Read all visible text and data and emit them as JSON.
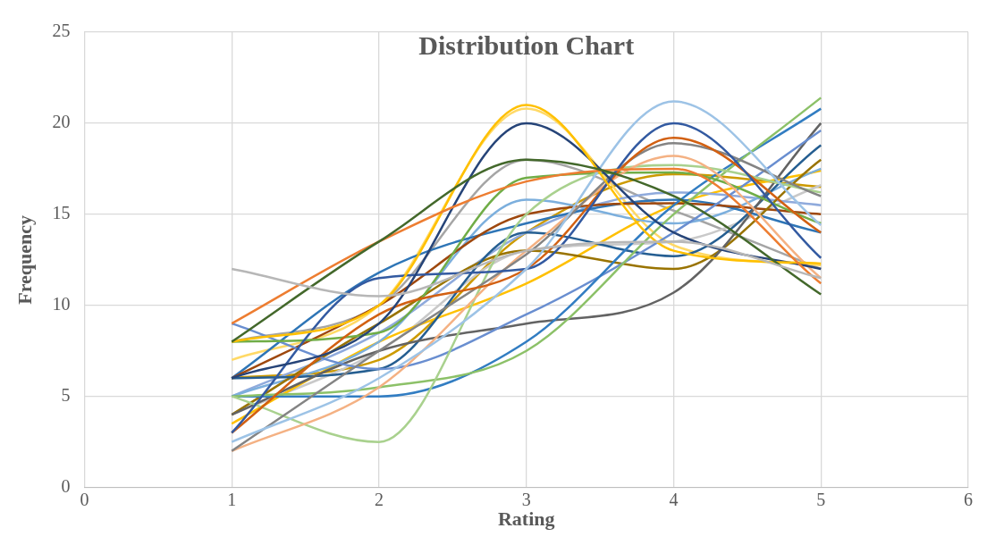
{
  "chart_data": {
    "type": "line",
    "title": "Distribution Chart",
    "xlabel": "Rating",
    "ylabel": "Frequency",
    "x": [
      1,
      2,
      3,
      4,
      5
    ],
    "xlim": [
      0,
      6
    ],
    "xticks": [
      0,
      1,
      2,
      3,
      4,
      5,
      6
    ],
    "ylim": [
      0,
      25
    ],
    "yticks": [
      0,
      5,
      10,
      15,
      20,
      25
    ],
    "grid": true,
    "legend": false,
    "marker": "none",
    "line_style": "solid",
    "series": [
      {
        "color": "#b7b7b7",
        "values": [
          12,
          10.5,
          13,
          13.5,
          11.5
        ]
      },
      {
        "color": "#43682b",
        "values": [
          8,
          13.5,
          18,
          16,
          10.6
        ]
      },
      {
        "color": "#ed7d31",
        "values": [
          9,
          13.5,
          16.8,
          17.5,
          11.2
        ]
      },
      {
        "color": "#ffc000",
        "values": [
          8,
          10,
          21,
          13,
          12.3
        ]
      },
      {
        "color": "#264478",
        "values": [
          6,
          9,
          20,
          14,
          12
        ]
      },
      {
        "color": "#9dc3e6",
        "values": [
          2.5,
          6,
          12,
          21.2,
          14.4
        ]
      },
      {
        "color": "#335aa1",
        "values": [
          3,
          11.5,
          12,
          20,
          12.6
        ]
      },
      {
        "color": "#d26012",
        "values": [
          3,
          9.5,
          12,
          19.2,
          14
        ]
      },
      {
        "color": "#848484",
        "values": [
          2,
          7.5,
          12.8,
          18.9,
          16
        ]
      },
      {
        "color": "#f4b183",
        "values": [
          2,
          5.5,
          13,
          18.2,
          11.5
        ]
      },
      {
        "color": "#a9d18e",
        "values": [
          5,
          2.5,
          15,
          17.7,
          16.2
        ]
      },
      {
        "color": "#70ad47",
        "values": [
          8,
          8.5,
          17,
          17.3,
          14.5
        ]
      },
      {
        "color": "#8cc168",
        "values": [
          5,
          5.5,
          7.5,
          15,
          21.4
        ]
      },
      {
        "color": "#327dc2",
        "values": [
          5,
          5,
          8,
          15.5,
          20.8
        ]
      },
      {
        "color": "#698ed0",
        "values": [
          9,
          6.5,
          9.5,
          14,
          19.6
        ]
      },
      {
        "color": "#636363",
        "values": [
          4,
          7.5,
          9,
          10.7,
          20
        ]
      },
      {
        "color": "#255e91",
        "values": [
          6,
          6.5,
          14,
          12.7,
          18.8
        ]
      },
      {
        "color": "#997300",
        "values": [
          4,
          9,
          13,
          12,
          18
        ]
      },
      {
        "color": "#9e480e",
        "values": [
          6,
          10,
          15,
          15.6,
          15
        ]
      },
      {
        "color": "#2e75b6",
        "values": [
          6,
          11.8,
          14.5,
          15.8,
          14
        ]
      },
      {
        "color": "#7cafdd",
        "values": [
          5,
          8,
          15.8,
          14.5,
          17.5
        ]
      },
      {
        "color": "#8faadc",
        "values": [
          5,
          8.5,
          14,
          16.2,
          15.5
        ]
      },
      {
        "color": "#ffc000",
        "values": [
          3.5,
          8,
          11.2,
          15.5,
          17.4
        ]
      },
      {
        "color": "#c9c9c9",
        "values": [
          4,
          7.5,
          13,
          13.5,
          16.6
        ]
      },
      {
        "color": "#ffd966",
        "values": [
          7,
          10,
          20.8,
          13.3,
          12.2
        ]
      },
      {
        "color": "#cc9a00",
        "values": [
          6,
          7,
          14,
          17.2,
          16.5
        ]
      },
      {
        "color": "#a5a5a5",
        "values": [
          8,
          10,
          18,
          15.2,
          12
        ]
      }
    ]
  }
}
